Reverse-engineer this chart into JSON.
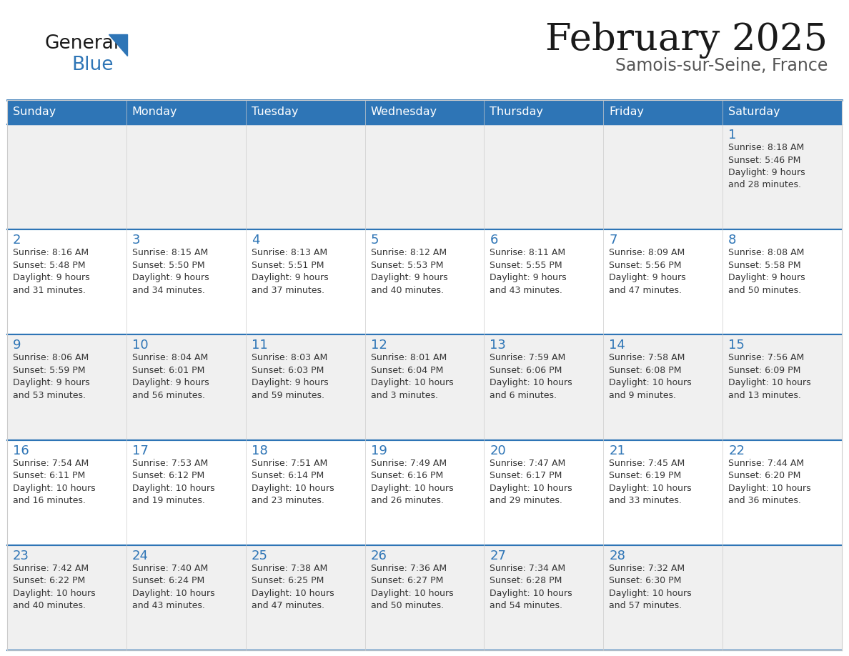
{
  "title": "February 2025",
  "subtitle": "Samois-sur-Seine, France",
  "header_bg": "#2e75b6",
  "header_text_color": "#ffffff",
  "cell_bg_odd": "#f0f0f0",
  "cell_bg_even": "#ffffff",
  "day_number_color": "#2e75b6",
  "text_color": "#333333",
  "divider_color": "#2e75b6",
  "days_of_week": [
    "Sunday",
    "Monday",
    "Tuesday",
    "Wednesday",
    "Thursday",
    "Friday",
    "Saturday"
  ],
  "weeks": [
    [
      {
        "day": null,
        "sunrise": null,
        "sunset": null,
        "daylight_line1": null,
        "daylight_line2": null
      },
      {
        "day": null,
        "sunrise": null,
        "sunset": null,
        "daylight_line1": null,
        "daylight_line2": null
      },
      {
        "day": null,
        "sunrise": null,
        "sunset": null,
        "daylight_line1": null,
        "daylight_line2": null
      },
      {
        "day": null,
        "sunrise": null,
        "sunset": null,
        "daylight_line1": null,
        "daylight_line2": null
      },
      {
        "day": null,
        "sunrise": null,
        "sunset": null,
        "daylight_line1": null,
        "daylight_line2": null
      },
      {
        "day": null,
        "sunrise": null,
        "sunset": null,
        "daylight_line1": null,
        "daylight_line2": null
      },
      {
        "day": 1,
        "sunrise": "Sunrise: 8:18 AM",
        "sunset": "Sunset: 5:46 PM",
        "daylight_line1": "Daylight: 9 hours",
        "daylight_line2": "and 28 minutes."
      }
    ],
    [
      {
        "day": 2,
        "sunrise": "Sunrise: 8:16 AM",
        "sunset": "Sunset: 5:48 PM",
        "daylight_line1": "Daylight: 9 hours",
        "daylight_line2": "and 31 minutes."
      },
      {
        "day": 3,
        "sunrise": "Sunrise: 8:15 AM",
        "sunset": "Sunset: 5:50 PM",
        "daylight_line1": "Daylight: 9 hours",
        "daylight_line2": "and 34 minutes."
      },
      {
        "day": 4,
        "sunrise": "Sunrise: 8:13 AM",
        "sunset": "Sunset: 5:51 PM",
        "daylight_line1": "Daylight: 9 hours",
        "daylight_line2": "and 37 minutes."
      },
      {
        "day": 5,
        "sunrise": "Sunrise: 8:12 AM",
        "sunset": "Sunset: 5:53 PM",
        "daylight_line1": "Daylight: 9 hours",
        "daylight_line2": "and 40 minutes."
      },
      {
        "day": 6,
        "sunrise": "Sunrise: 8:11 AM",
        "sunset": "Sunset: 5:55 PM",
        "daylight_line1": "Daylight: 9 hours",
        "daylight_line2": "and 43 minutes."
      },
      {
        "day": 7,
        "sunrise": "Sunrise: 8:09 AM",
        "sunset": "Sunset: 5:56 PM",
        "daylight_line1": "Daylight: 9 hours",
        "daylight_line2": "and 47 minutes."
      },
      {
        "day": 8,
        "sunrise": "Sunrise: 8:08 AM",
        "sunset": "Sunset: 5:58 PM",
        "daylight_line1": "Daylight: 9 hours",
        "daylight_line2": "and 50 minutes."
      }
    ],
    [
      {
        "day": 9,
        "sunrise": "Sunrise: 8:06 AM",
        "sunset": "Sunset: 5:59 PM",
        "daylight_line1": "Daylight: 9 hours",
        "daylight_line2": "and 53 minutes."
      },
      {
        "day": 10,
        "sunrise": "Sunrise: 8:04 AM",
        "sunset": "Sunset: 6:01 PM",
        "daylight_line1": "Daylight: 9 hours",
        "daylight_line2": "and 56 minutes."
      },
      {
        "day": 11,
        "sunrise": "Sunrise: 8:03 AM",
        "sunset": "Sunset: 6:03 PM",
        "daylight_line1": "Daylight: 9 hours",
        "daylight_line2": "and 59 minutes."
      },
      {
        "day": 12,
        "sunrise": "Sunrise: 8:01 AM",
        "sunset": "Sunset: 6:04 PM",
        "daylight_line1": "Daylight: 10 hours",
        "daylight_line2": "and 3 minutes."
      },
      {
        "day": 13,
        "sunrise": "Sunrise: 7:59 AM",
        "sunset": "Sunset: 6:06 PM",
        "daylight_line1": "Daylight: 10 hours",
        "daylight_line2": "and 6 minutes."
      },
      {
        "day": 14,
        "sunrise": "Sunrise: 7:58 AM",
        "sunset": "Sunset: 6:08 PM",
        "daylight_line1": "Daylight: 10 hours",
        "daylight_line2": "and 9 minutes."
      },
      {
        "day": 15,
        "sunrise": "Sunrise: 7:56 AM",
        "sunset": "Sunset: 6:09 PM",
        "daylight_line1": "Daylight: 10 hours",
        "daylight_line2": "and 13 minutes."
      }
    ],
    [
      {
        "day": 16,
        "sunrise": "Sunrise: 7:54 AM",
        "sunset": "Sunset: 6:11 PM",
        "daylight_line1": "Daylight: 10 hours",
        "daylight_line2": "and 16 minutes."
      },
      {
        "day": 17,
        "sunrise": "Sunrise: 7:53 AM",
        "sunset": "Sunset: 6:12 PM",
        "daylight_line1": "Daylight: 10 hours",
        "daylight_line2": "and 19 minutes."
      },
      {
        "day": 18,
        "sunrise": "Sunrise: 7:51 AM",
        "sunset": "Sunset: 6:14 PM",
        "daylight_line1": "Daylight: 10 hours",
        "daylight_line2": "and 23 minutes."
      },
      {
        "day": 19,
        "sunrise": "Sunrise: 7:49 AM",
        "sunset": "Sunset: 6:16 PM",
        "daylight_line1": "Daylight: 10 hours",
        "daylight_line2": "and 26 minutes."
      },
      {
        "day": 20,
        "sunrise": "Sunrise: 7:47 AM",
        "sunset": "Sunset: 6:17 PM",
        "daylight_line1": "Daylight: 10 hours",
        "daylight_line2": "and 29 minutes."
      },
      {
        "day": 21,
        "sunrise": "Sunrise: 7:45 AM",
        "sunset": "Sunset: 6:19 PM",
        "daylight_line1": "Daylight: 10 hours",
        "daylight_line2": "and 33 minutes."
      },
      {
        "day": 22,
        "sunrise": "Sunrise: 7:44 AM",
        "sunset": "Sunset: 6:20 PM",
        "daylight_line1": "Daylight: 10 hours",
        "daylight_line2": "and 36 minutes."
      }
    ],
    [
      {
        "day": 23,
        "sunrise": "Sunrise: 7:42 AM",
        "sunset": "Sunset: 6:22 PM",
        "daylight_line1": "Daylight: 10 hours",
        "daylight_line2": "and 40 minutes."
      },
      {
        "day": 24,
        "sunrise": "Sunrise: 7:40 AM",
        "sunset": "Sunset: 6:24 PM",
        "daylight_line1": "Daylight: 10 hours",
        "daylight_line2": "and 43 minutes."
      },
      {
        "day": 25,
        "sunrise": "Sunrise: 7:38 AM",
        "sunset": "Sunset: 6:25 PM",
        "daylight_line1": "Daylight: 10 hours",
        "daylight_line2": "and 47 minutes."
      },
      {
        "day": 26,
        "sunrise": "Sunrise: 7:36 AM",
        "sunset": "Sunset: 6:27 PM",
        "daylight_line1": "Daylight: 10 hours",
        "daylight_line2": "and 50 minutes."
      },
      {
        "day": 27,
        "sunrise": "Sunrise: 7:34 AM",
        "sunset": "Sunset: 6:28 PM",
        "daylight_line1": "Daylight: 10 hours",
        "daylight_line2": "and 54 minutes."
      },
      {
        "day": 28,
        "sunrise": "Sunrise: 7:32 AM",
        "sunset": "Sunset: 6:30 PM",
        "daylight_line1": "Daylight: 10 hours",
        "daylight_line2": "and 57 minutes."
      },
      {
        "day": null,
        "sunrise": null,
        "sunset": null,
        "daylight_line1": null,
        "daylight_line2": null
      }
    ]
  ]
}
